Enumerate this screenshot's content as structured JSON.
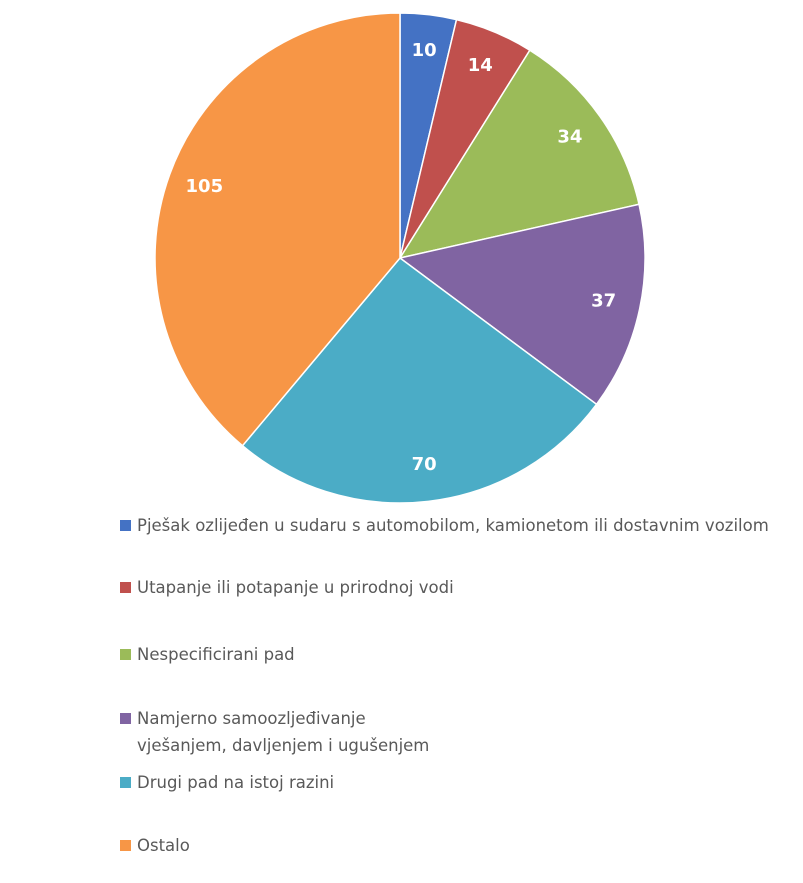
{
  "chart_data": {
    "type": "pie",
    "categories": [
      "Pješak ozlijeđen u sudaru s automobilom, kamionetom ili dostavnim vozilom",
      "Utapanje ili potapanje u prirodnoj vodi",
      "Nespecificirani pad",
      "Namjerno samoozljeđivanje vješanjem, davljenjem i ugušenjem",
      "Drugi pad na istoj razini",
      "Ostalo"
    ],
    "values": [
      10,
      14,
      34,
      37,
      70,
      105
    ],
    "colors": [
      "#4472c4",
      "#c0504d",
      "#9bbb59",
      "#8064a2",
      "#4bacc6",
      "#f79646"
    ],
    "legend": "bottom"
  }
}
